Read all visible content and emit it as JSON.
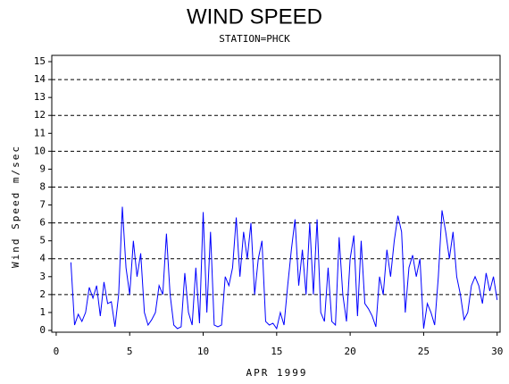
{
  "chart_data": {
    "type": "line",
    "title": "WIND SPEED",
    "subtitle": "STATION=PHCK",
    "x_label": "APR 1999",
    "y_label": "Wind Speed m/sec",
    "x": [
      1,
      1.25,
      1.5,
      1.75,
      2,
      2.25,
      2.5,
      2.75,
      3,
      3.25,
      3.5,
      3.75,
      4,
      4.25,
      4.5,
      4.75,
      5,
      5.25,
      5.5,
      5.75,
      6,
      6.25,
      6.5,
      6.75,
      7,
      7.25,
      7.5,
      7.75,
      8,
      8.25,
      8.5,
      8.75,
      9,
      9.25,
      9.5,
      9.75,
      10,
      10.25,
      10.5,
      10.75,
      11,
      11.25,
      11.5,
      11.75,
      12,
      12.25,
      12.5,
      12.75,
      13,
      13.25,
      13.5,
      13.75,
      14,
      14.25,
      14.5,
      14.75,
      15,
      15.25,
      15.5,
      15.75,
      16,
      16.25,
      16.5,
      16.75,
      17,
      17.25,
      17.5,
      17.75,
      18,
      18.25,
      18.5,
      18.75,
      19,
      19.25,
      19.5,
      19.75,
      20,
      20.25,
      20.5,
      20.75,
      21,
      21.25,
      21.5,
      21.75,
      22,
      22.25,
      22.5,
      22.75,
      23,
      23.25,
      23.5,
      23.75,
      24,
      24.25,
      24.5,
      24.75,
      25,
      25.25,
      25.5,
      25.75,
      26,
      26.25,
      26.5,
      26.75,
      27,
      27.25,
      27.5,
      27.75,
      28,
      28.25,
      28.5,
      28.75,
      29,
      29.25,
      29.5,
      29.75,
      30
    ],
    "series": [
      {
        "name": "Wind Speed",
        "color": "#0000ff",
        "values": [
          3.8,
          0.3,
          0.9,
          0.5,
          1.0,
          2.4,
          1.8,
          2.5,
          0.8,
          2.7,
          1.5,
          1.6,
          0.2,
          2.0,
          6.9,
          3.5,
          2.0,
          5.0,
          3.0,
          4.3,
          1.0,
          0.3,
          0.6,
          1.0,
          2.5,
          2.0,
          5.4,
          2.0,
          0.3,
          0.1,
          0.2,
          3.2,
          1.0,
          0.3,
          3.5,
          0.4,
          6.6,
          1.0,
          5.5,
          0.3,
          0.2,
          0.3,
          3.0,
          2.5,
          3.5,
          6.3,
          3.0,
          5.5,
          4.0,
          6.0,
          2.0,
          4.0,
          5.0,
          0.5,
          0.3,
          0.4,
          0.1,
          1.0,
          0.3,
          2.5,
          4.5,
          6.2,
          2.5,
          4.5,
          2.0,
          6.0,
          2.0,
          6.2,
          1.0,
          0.5,
          3.5,
          0.5,
          0.3,
          5.2,
          2.0,
          0.5,
          4.0,
          5.3,
          0.8,
          5.0,
          1.5,
          1.2,
          0.8,
          0.2,
          3.0,
          2.0,
          4.5,
          3.0,
          5.0,
          6.4,
          5.5,
          1.0,
          3.5,
          4.2,
          3.0,
          4.0,
          0.1,
          1.5,
          1.0,
          0.3,
          3.0,
          6.7,
          5.5,
          4.0,
          5.5,
          3.0,
          2.0,
          0.6,
          1.0,
          2.5,
          3.0,
          2.5,
          1.5,
          3.2,
          2.2,
          3.0,
          1.7
        ]
      }
    ],
    "xlim": [
      -0.3,
      30.2
    ],
    "xticks": [
      0,
      5,
      10,
      15,
      20,
      25,
      30
    ],
    "ylim": [
      -0.1,
      15.35
    ],
    "yticks": [
      0,
      1,
      2,
      3,
      4,
      5,
      6,
      7,
      8,
      9,
      10,
      11,
      12,
      13,
      14,
      15
    ],
    "grid_lines": [
      2,
      4,
      6,
      8,
      10,
      12,
      14
    ]
  }
}
